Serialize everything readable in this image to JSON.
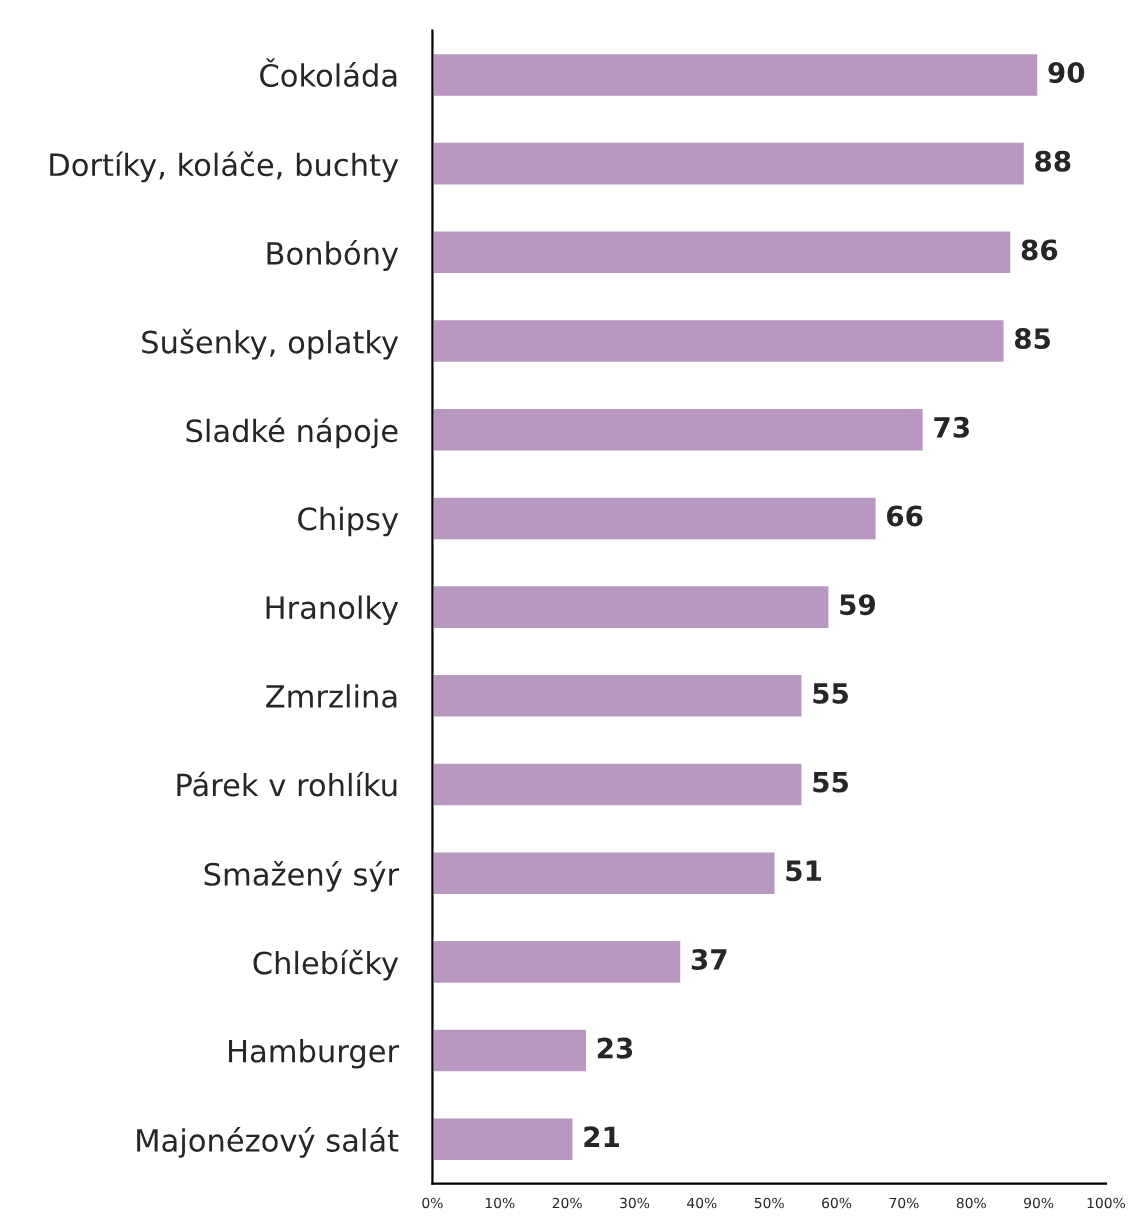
{
  "chart_data": {
    "type": "bar",
    "orientation": "horizontal",
    "categories": [
      "Čokoláda",
      "Dortíky, koláče, buchty",
      "Bonbóny",
      "Sušenky, oplatky",
      "Sladké nápoje",
      "Chipsy",
      "Hranolky",
      "Zmrzlina",
      "Párek v rohlíku",
      "Smažený sýr",
      "Chlebíčky",
      "Hamburger",
      "Majonézový salát"
    ],
    "values": [
      90,
      88,
      86,
      85,
      73,
      66,
      59,
      55,
      55,
      51,
      37,
      23,
      21
    ],
    "color": "#b897c0",
    "xlim": [
      0,
      100
    ],
    "xticks": [
      {
        "value": 0,
        "label": "0%"
      },
      {
        "value": 10,
        "label": "10%"
      },
      {
        "value": 20,
        "label": "20%"
      },
      {
        "value": 30,
        "label": "30%"
      },
      {
        "value": 40,
        "label": "40%"
      },
      {
        "value": 50,
        "label": "50%"
      },
      {
        "value": 60,
        "label": "60%"
      },
      {
        "value": 70,
        "label": "70%"
      },
      {
        "value": 80,
        "label": "80%"
      },
      {
        "value": 90,
        "label": "90%"
      },
      {
        "value": 100,
        "label": "100%"
      }
    ],
    "data_labels": true,
    "grid": false,
    "legend": false
  }
}
